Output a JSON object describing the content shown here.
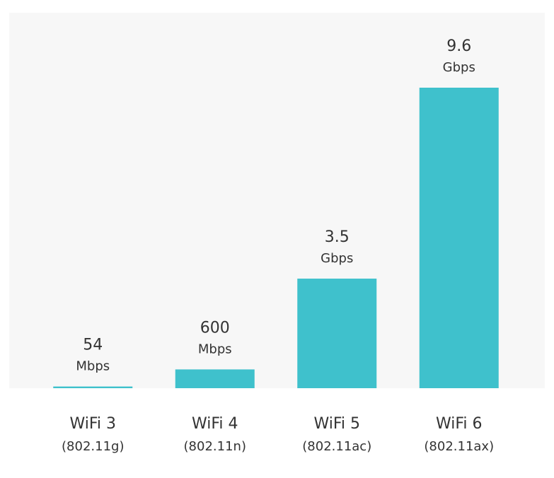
{
  "chart_data": {
    "type": "bar",
    "categories": [
      "WiFi 3",
      "WiFi 4",
      "WiFi 5",
      "WiFi 6"
    ],
    "category_subtitles": [
      "(802.11g)",
      "(802.11n)",
      "(802.11ac)",
      "(802.11ax)"
    ],
    "values": [
      54,
      600,
      3500,
      9600
    ],
    "value_labels": [
      [
        "54",
        "Mbps"
      ],
      [
        "600",
        "Mbps"
      ],
      [
        "3.5",
        "Gbps"
      ],
      [
        "9.6",
        "Gbps"
      ]
    ],
    "color": "#3fc1cc"
  }
}
